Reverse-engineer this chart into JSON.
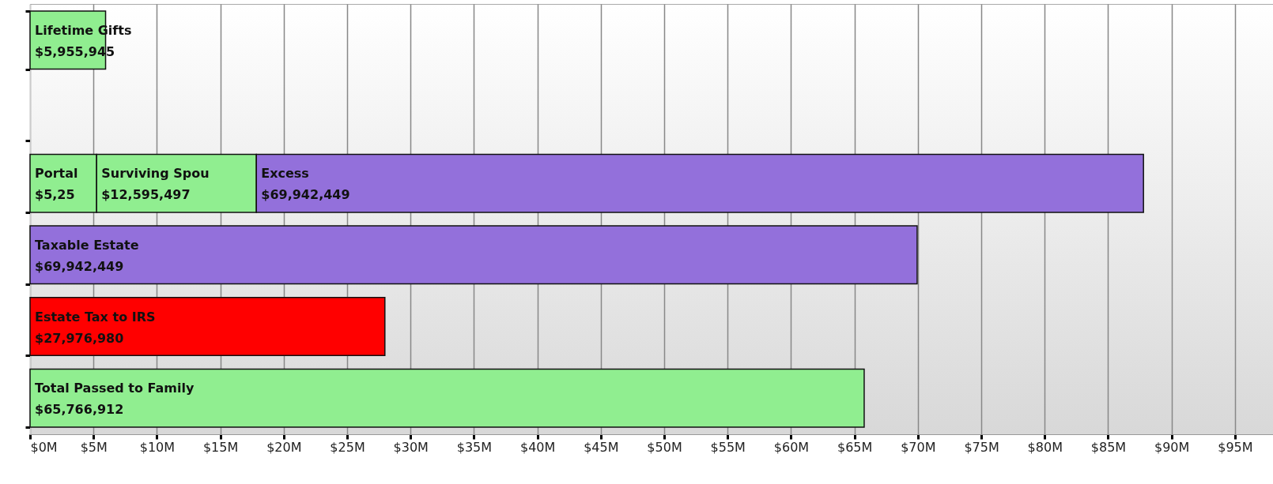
{
  "chart_data": {
    "type": "bar",
    "orientation": "horizontal",
    "stacked": true,
    "categories": [
      null,
      null,
      null,
      null,
      null,
      null
    ],
    "series": [
      {
        "values": [
          5955945,
          null,
          5250000,
          69942449,
          27976980,
          65766912
        ],
        "colors": [
          "#90ee90",
          null,
          "#90ee90",
          "#9370db",
          "#ff0000",
          "#90ee90"
        ],
        "value_labels": [
          "Lifetime Gifts\n$5,955,945",
          null,
          "Portal\n$5,25",
          "Taxable Estate\n$69,942,449",
          "Estate Tax to IRS\n$27,976,980",
          "Total Passed to Family\n$65,766,912"
        ]
      },
      {
        "values": [
          null,
          null,
          12595497,
          null,
          null,
          null
        ],
        "color": "#90ee90",
        "value_labels": [
          null,
          null,
          "Surviving Spou\n$12,595,497",
          null,
          null,
          null
        ]
      },
      {
        "values": [
          null,
          null,
          69942449,
          null,
          null,
          null
        ],
        "color": "#9370db",
        "value_labels": [
          null,
          null,
          "Excess\n$69,942,449",
          null,
          null,
          null
        ]
      }
    ],
    "xlim": [
      0,
      98000000
    ],
    "xticks": [
      {
        "value": 0,
        "label": "$0M"
      },
      {
        "value": 5000000,
        "label": "$5M"
      },
      {
        "value": 10000000,
        "label": "$10M"
      },
      {
        "value": 15000000,
        "label": "$15M"
      },
      {
        "value": 20000000,
        "label": "$20M"
      },
      {
        "value": 25000000,
        "label": "$25M"
      },
      {
        "value": 30000000,
        "label": "$30M"
      },
      {
        "value": 35000000,
        "label": "$35M"
      },
      {
        "value": 40000000,
        "label": "$40M"
      },
      {
        "value": 45000000,
        "label": "$45M"
      },
      {
        "value": 50000000,
        "label": "$50M"
      },
      {
        "value": 55000000,
        "label": "$55M"
      },
      {
        "value": 60000000,
        "label": "$60M"
      },
      {
        "value": 65000000,
        "label": "$65M"
      },
      {
        "value": 70000000,
        "label": "$70M"
      },
      {
        "value": 75000000,
        "label": "$75M"
      },
      {
        "value": 80000000,
        "label": "$80M"
      },
      {
        "value": 85000000,
        "label": "$85M"
      },
      {
        "value": 90000000,
        "label": "$90M"
      },
      {
        "value": 95000000,
        "label": "$95M"
      }
    ],
    "grid": "x",
    "tick_labels": "x"
  }
}
